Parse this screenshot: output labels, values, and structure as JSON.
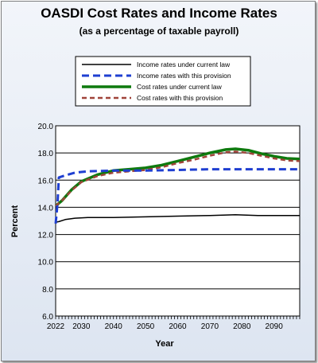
{
  "chart_data": {
    "type": "line",
    "title": "OASDI Cost Rates and Income Rates",
    "subtitle": "(as a percentage of taxable payroll)",
    "xlabel": "Year",
    "ylabel": "Percent",
    "xlim": [
      2022,
      2098
    ],
    "ylim": [
      6.0,
      20.0
    ],
    "x_ticks": [
      2022,
      2030,
      2040,
      2050,
      2060,
      2070,
      2080,
      2090
    ],
    "y_ticks": [
      "6.0",
      "8.0",
      "10.0",
      "12.0",
      "14.0",
      "16.0",
      "18.0",
      "20.0"
    ],
    "grid": true,
    "legend_position": "top-center",
    "series": [
      {
        "name": "Income rates under current law",
        "color": "#000000",
        "style": "solid",
        "points": [
          [
            2022,
            12.9
          ],
          [
            2023,
            12.95
          ],
          [
            2025,
            13.1
          ],
          [
            2028,
            13.2
          ],
          [
            2032,
            13.25
          ],
          [
            2040,
            13.25
          ],
          [
            2050,
            13.3
          ],
          [
            2060,
            13.35
          ],
          [
            2070,
            13.4
          ],
          [
            2078,
            13.45
          ],
          [
            2085,
            13.4
          ],
          [
            2098,
            13.4
          ]
        ]
      },
      {
        "name": "Income rates with this provision",
        "color": "#1f3fd1",
        "style": "dashed",
        "points": [
          [
            2022,
            12.8
          ],
          [
            2022.6,
            14.3
          ],
          [
            2023,
            16.2
          ],
          [
            2025,
            16.35
          ],
          [
            2028,
            16.55
          ],
          [
            2032,
            16.65
          ],
          [
            2040,
            16.7
          ],
          [
            2050,
            16.7
          ],
          [
            2060,
            16.75
          ],
          [
            2070,
            16.8
          ],
          [
            2080,
            16.8
          ],
          [
            2098,
            16.8
          ]
        ]
      },
      {
        "name": "Cost rates under current law",
        "color": "#0e7a0e",
        "style": "solid",
        "points": [
          [
            2022,
            14.1
          ],
          [
            2024,
            14.5
          ],
          [
            2027,
            15.3
          ],
          [
            2030,
            15.9
          ],
          [
            2035,
            16.4
          ],
          [
            2040,
            16.7
          ],
          [
            2045,
            16.8
          ],
          [
            2050,
            16.9
          ],
          [
            2055,
            17.1
          ],
          [
            2060,
            17.4
          ],
          [
            2065,
            17.7
          ],
          [
            2070,
            18.0
          ],
          [
            2075,
            18.25
          ],
          [
            2078,
            18.3
          ],
          [
            2082,
            18.2
          ],
          [
            2086,
            17.95
          ],
          [
            2090,
            17.75
          ],
          [
            2094,
            17.6
          ],
          [
            2098,
            17.55
          ]
        ]
      },
      {
        "name": "Cost rates with this provision",
        "color": "#a0443a",
        "style": "dashed",
        "points": [
          [
            2022,
            14.1
          ],
          [
            2024,
            14.5
          ],
          [
            2027,
            15.25
          ],
          [
            2030,
            15.85
          ],
          [
            2035,
            16.3
          ],
          [
            2040,
            16.55
          ],
          [
            2045,
            16.65
          ],
          [
            2050,
            16.75
          ],
          [
            2055,
            16.95
          ],
          [
            2060,
            17.25
          ],
          [
            2065,
            17.5
          ],
          [
            2070,
            17.8
          ],
          [
            2075,
            18.05
          ],
          [
            2078,
            18.1
          ],
          [
            2082,
            18.0
          ],
          [
            2086,
            17.8
          ],
          [
            2090,
            17.6
          ],
          [
            2094,
            17.45
          ],
          [
            2098,
            17.4
          ]
        ]
      }
    ]
  }
}
